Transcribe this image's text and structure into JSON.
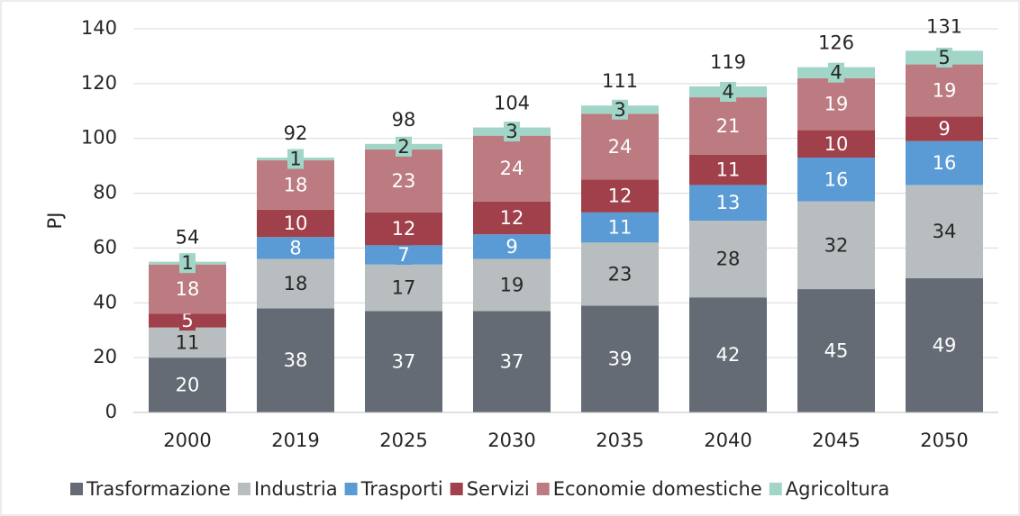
{
  "chart_data": {
    "type": "stacked_bar",
    "y_label": "PJ",
    "categories": [
      "2000",
      "2019",
      "2025",
      "2030",
      "2035",
      "2040",
      "2045",
      "2050"
    ],
    "series": [
      {
        "name": "Trasformazione",
        "color": "#646b74",
        "label_color": "#ffffff",
        "values": [
          20,
          38,
          37,
          37,
          39,
          42,
          45,
          49
        ]
      },
      {
        "name": "Industria",
        "color": "#b8bdc0",
        "label_color": "#262626",
        "values": [
          11,
          18,
          17,
          19,
          23,
          28,
          32,
          34
        ]
      },
      {
        "name": "Trasporti",
        "color": "#5b9bd5",
        "label_color": "#ffffff",
        "values": [
          null,
          8,
          7,
          9,
          11,
          13,
          16,
          16
        ]
      },
      {
        "name": "Servizi",
        "color": "#a0404b",
        "label_color": "#ffffff",
        "values": [
          5,
          10,
          12,
          12,
          12,
          11,
          10,
          9
        ]
      },
      {
        "name": "Economie domestiche",
        "color": "#bb7b80",
        "label_color": "#ffffff",
        "values": [
          18,
          18,
          23,
          24,
          24,
          21,
          19,
          19
        ]
      },
      {
        "name": "Agricoltura",
        "color": "#a0d5c7",
        "label_color": "#262626",
        "values": [
          1,
          1,
          2,
          3,
          3,
          4,
          4,
          5
        ]
      }
    ],
    "totals": [
      54,
      92,
      98,
      104,
      111,
      119,
      126,
      131
    ],
    "ylim": [
      0,
      140
    ],
    "yticks": [
      0,
      20,
      40,
      60,
      80,
      100,
      120,
      140
    ],
    "grid": true,
    "legend": "bottom"
  }
}
